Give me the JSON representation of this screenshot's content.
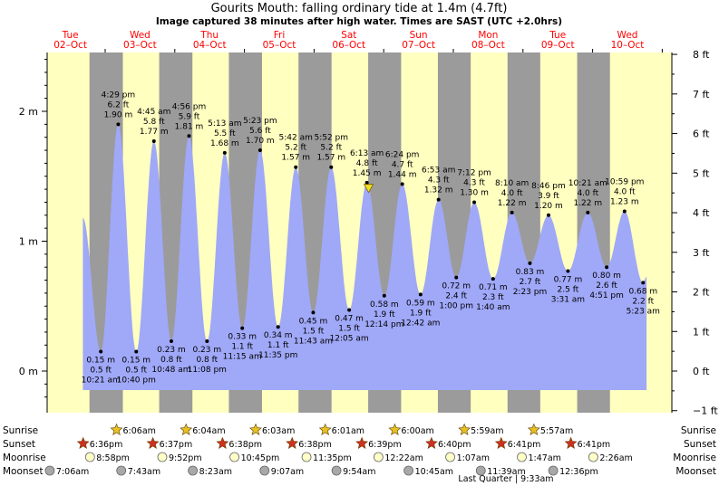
{
  "header": {
    "title": "Gourits Mouth: falling  ordinary tide at 1.4m (4.7ft)",
    "subtitle": "Image captured 38 minutes after high water. Times are SAST (UTC +2.0hrs)"
  },
  "days": [
    {
      "day": "Tue",
      "date": "02–Oct"
    },
    {
      "day": "Wed",
      "date": "03–Oct"
    },
    {
      "day": "Thu",
      "date": "04–Oct"
    },
    {
      "day": "Fri",
      "date": "05–Oct"
    },
    {
      "day": "Sat",
      "date": "06–Oct"
    },
    {
      "day": "Sun",
      "date": "07–Oct"
    },
    {
      "day": "Mon",
      "date": "08–Oct"
    },
    {
      "day": "Tue",
      "date": "09–Oct"
    },
    {
      "day": "Wed",
      "date": "10–Oct"
    }
  ],
  "colors": {
    "day_bg": "#ffffc0",
    "night_bg": "#9b9b9b",
    "tide_fill": "#a0a8f8",
    "day_label": "#ff0000",
    "sun_star": "#e8c020",
    "sunset_star": "#d03020",
    "moonrise": "#ffffc8",
    "moonset": "#a8a8a8"
  },
  "chart_data": {
    "type": "area",
    "title": "Gourits Mouth: falling  ordinary tide at 1.4m (4.7ft)",
    "left_axis": {
      "unit": "m",
      "ticks": [
        "0 m",
        "1 m",
        "2 m"
      ],
      "range": [
        -0.2,
        2.45
      ]
    },
    "right_axis": {
      "unit": "ft",
      "ticks": [
        "−1 ft",
        "0 ft",
        "1 ft",
        "2 ft",
        "3 ft",
        "4 ft",
        "5 ft",
        "6 ft",
        "7 ft",
        "8 ft"
      ]
    },
    "tides": [
      {
        "time": "10:21 am",
        "m": "0.15 m",
        "ft": "0.5 ft",
        "v": 0.15,
        "h": 46.5,
        "type": "low"
      },
      {
        "time": "4:29 pm",
        "m": "1.90 m",
        "ft": "6.2 ft",
        "v": 1.9,
        "h": 52.5,
        "type": "high"
      },
      {
        "time": "10:40 pm",
        "m": "0.15 m",
        "ft": "0.5 ft",
        "v": 0.15,
        "h": 58.7,
        "type": "low"
      },
      {
        "time": "4:45 am",
        "m": "1.77 m",
        "ft": "5.8 ft",
        "v": 1.77,
        "h": 64.8,
        "type": "high"
      },
      {
        "time": "10:48 am",
        "m": "0.23 m",
        "ft": "0.8 ft",
        "v": 0.23,
        "h": 70.8,
        "type": "low"
      },
      {
        "time": "4:56 pm",
        "m": "1.81 m",
        "ft": "5.9 ft",
        "v": 1.81,
        "h": 76.9,
        "type": "high"
      },
      {
        "time": "11:08 pm",
        "m": "0.23 m",
        "ft": "0.8 ft",
        "v": 0.23,
        "h": 83.1,
        "type": "low"
      },
      {
        "time": "5:13 am",
        "m": "1.68 m",
        "ft": "5.5 ft",
        "v": 1.68,
        "h": 89.2,
        "type": "high"
      },
      {
        "time": "11:15 am",
        "m": "0.33 m",
        "ft": "1.1 ft",
        "v": 0.33,
        "h": 95.25,
        "type": "low"
      },
      {
        "time": "5:23 pm",
        "m": "1.70 m",
        "ft": "5.6 ft",
        "v": 1.7,
        "h": 101.4,
        "type": "high"
      },
      {
        "time": "11:35 pm",
        "m": "0.34 m",
        "ft": "1.1 ft",
        "v": 0.34,
        "h": 107.6,
        "type": "low"
      },
      {
        "time": "5:42 am",
        "m": "1.57 m",
        "ft": "5.2 ft",
        "v": 1.57,
        "h": 113.7,
        "type": "high"
      },
      {
        "time": "11:43 am",
        "m": "0.45 m",
        "ft": "1.5 ft",
        "v": 0.45,
        "h": 119.7,
        "type": "low"
      },
      {
        "time": "5:52 pm",
        "m": "1.57 m",
        "ft": "5.2 ft",
        "v": 1.57,
        "h": 125.9,
        "type": "high"
      },
      {
        "time": "12:05 am",
        "m": "0.47 m",
        "ft": "1.5 ft",
        "v": 0.47,
        "h": 132.1,
        "type": "low"
      },
      {
        "time": "6:13 am",
        "m": "1.45 m",
        "ft": "4.8 ft",
        "v": 1.45,
        "h": 138.2,
        "type": "high"
      },
      {
        "time": "12:14 pm",
        "m": "0.58 m",
        "ft": "1.9 ft",
        "v": 0.58,
        "h": 144.2,
        "type": "low"
      },
      {
        "time": "6:24 pm",
        "m": "1.44 m",
        "ft": "4.7 ft",
        "v": 1.44,
        "h": 150.4,
        "type": "high"
      },
      {
        "time": "12:42 am",
        "m": "0.59 m",
        "ft": "1.9 ft",
        "v": 0.59,
        "h": 156.7,
        "type": "low"
      },
      {
        "time": "6:53 am",
        "m": "1.32 m",
        "ft": "4.3 ft",
        "v": 1.32,
        "h": 162.9,
        "type": "high"
      },
      {
        "time": "1:00 pm",
        "m": "0.72 m",
        "ft": "2.4 ft",
        "v": 0.72,
        "h": 169.0,
        "type": "low"
      },
      {
        "time": "7:12 pm",
        "m": "1.30 m",
        "ft": "4.3 ft",
        "v": 1.3,
        "h": 175.2,
        "type": "high"
      },
      {
        "time": "1:40 am",
        "m": "0.71 m",
        "ft": "2.3 ft",
        "v": 0.71,
        "h": 181.7,
        "type": "low"
      },
      {
        "time": "8:10 am",
        "m": "1.22 m",
        "ft": "4.0 ft",
        "v": 1.22,
        "h": 188.2,
        "type": "high"
      },
      {
        "time": "2:23 pm",
        "m": "0.83 m",
        "ft": "2.7 ft",
        "v": 0.83,
        "h": 194.4,
        "type": "low"
      },
      {
        "time": "8:46 pm",
        "m": "1.20 m",
        "ft": "3.9 ft",
        "v": 1.2,
        "h": 200.8,
        "type": "high"
      },
      {
        "time": "3:31 am",
        "m": "0.77 m",
        "ft": "2.5 ft",
        "v": 0.77,
        "h": 207.5,
        "type": "low"
      },
      {
        "time": "10:21 am",
        "m": "1.22 m",
        "ft": "4.0 ft",
        "v": 1.22,
        "h": 214.35,
        "type": "high"
      },
      {
        "time": "4:51 pm",
        "m": "0.80 m",
        "ft": "2.6 ft",
        "v": 0.8,
        "h": 220.85,
        "type": "low"
      },
      {
        "time": "10:59 pm",
        "m": "1.23 m",
        "ft": "4.0 ft",
        "v": 1.23,
        "h": 227.0,
        "type": "high"
      },
      {
        "time": "5:23 am",
        "m": "0.68 m",
        "ft": "2.2 ft",
        "v": 0.68,
        "h": 233.4,
        "type": "low"
      }
    ],
    "current_marker_hours": 138.8
  },
  "bottom": {
    "labels": {
      "sunrise": "Sunrise",
      "sunset": "Sunset",
      "moonrise": "Moonrise",
      "moonset": "Moonset"
    },
    "sunrise": [
      {
        "time": "6:06am",
        "h": 54.1
      },
      {
        "time": "6:04am",
        "h": 78.07
      },
      {
        "time": "6:03am",
        "h": 102.05
      },
      {
        "time": "6:01am",
        "h": 126.02
      },
      {
        "time": "6:00am",
        "h": 150.0
      },
      {
        "time": "5:59am",
        "h": 173.98
      },
      {
        "time": "5:57am",
        "h": 197.95
      }
    ],
    "sunset": [
      {
        "time": "6:36pm",
        "h": 42.6
      },
      {
        "time": "6:37pm",
        "h": 66.62
      },
      {
        "time": "6:38pm",
        "h": 90.63
      },
      {
        "time": "6:38pm",
        "h": 114.63
      },
      {
        "time": "6:39pm",
        "h": 138.65
      },
      {
        "time": "6:40pm",
        "h": 162.67
      },
      {
        "time": "6:41pm",
        "h": 186.68
      },
      {
        "time": "6:41pm",
        "h": 210.68
      }
    ],
    "moonrise": [
      {
        "time": "8:58pm",
        "h": 44.97
      },
      {
        "time": "9:52pm",
        "h": 69.87
      },
      {
        "time": "10:45pm",
        "h": 94.75
      },
      {
        "time": "11:35pm",
        "h": 119.58
      },
      {
        "time": "12:22am",
        "h": 144.37
      },
      {
        "time": "1:07am",
        "h": 169.12
      },
      {
        "time": "1:47am",
        "h": 193.78
      },
      {
        "time": "2:26am",
        "h": 218.43
      }
    ],
    "moonset": [
      {
        "time": "7:06am",
        "h": 31.1
      },
      {
        "time": "7:43am",
        "h": 55.72
      },
      {
        "time": "8:23am",
        "h": 80.38
      },
      {
        "time": "9:07am",
        "h": 105.12
      },
      {
        "time": "9:54am",
        "h": 129.9
      },
      {
        "time": "10:45am",
        "h": 154.75
      },
      {
        "time": "11:39am",
        "h": 179.65
      },
      {
        "time": "12:36pm",
        "h": 204.6
      }
    ],
    "moon_phase": "Last Quarter | 9:33am"
  }
}
